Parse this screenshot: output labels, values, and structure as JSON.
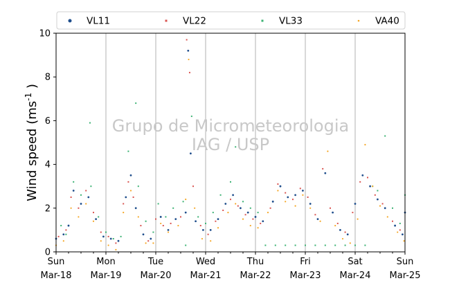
{
  "chart_data": {
    "type": "scatter",
    "ylabel": "Wind speed (ms",
    "ylabel_sup": "-1",
    "ylabel_close": " )",
    "xlabel": "",
    "ylim": [
      0,
      10
    ],
    "yticks": [
      "0",
      "2",
      "4",
      "6",
      "8",
      "10"
    ],
    "grid": "vertical lines at day boundaries",
    "legend_position": "top",
    "watermark": [
      "Grupo de Micrometeorologia",
      "IAG / USP"
    ],
    "x_ticks": [
      {
        "day": "Sun",
        "date": "Mar-18"
      },
      {
        "day": "Mon",
        "date": "Mar-19"
      },
      {
        "day": "Tue",
        "date": "Mar-20"
      },
      {
        "day": "Wed",
        "date": "Mar-21"
      },
      {
        "day": "Thu",
        "date": "Mar-22"
      },
      {
        "day": "Fri",
        "date": "Mar-23"
      },
      {
        "day": "Sat",
        "date": "Mar-24"
      },
      {
        "day": "Sun",
        "date": "Mar-25"
      }
    ],
    "x_days": 7,
    "series": [
      {
        "name": "VL11",
        "color": "#1f4e8c",
        "size": 2.2,
        "marker": "hex",
        "points": [
          [
            0.0,
            0.6
          ],
          [
            0.15,
            0.8
          ],
          [
            0.25,
            1.2
          ],
          [
            0.35,
            2.8
          ],
          [
            0.5,
            2.2
          ],
          [
            0.65,
            2.5
          ],
          [
            0.8,
            1.5
          ],
          [
            0.95,
            0.7
          ],
          [
            1.1,
            0.6
          ],
          [
            1.25,
            0.5
          ],
          [
            1.4,
            2.5
          ],
          [
            1.5,
            3.5
          ],
          [
            1.6,
            2.0
          ],
          [
            1.75,
            0.8
          ],
          [
            1.9,
            0.6
          ],
          [
            2.1,
            1.6
          ],
          [
            2.25,
            1.0
          ],
          [
            2.4,
            1.5
          ],
          [
            2.6,
            1.8
          ],
          [
            2.65,
            9.2
          ],
          [
            2.7,
            4.5
          ],
          [
            2.8,
            1.4
          ],
          [
            2.95,
            1.0
          ],
          [
            3.1,
            1.0
          ],
          [
            3.25,
            1.5
          ],
          [
            3.4,
            2.2
          ],
          [
            3.55,
            2.6
          ],
          [
            3.7,
            2.0
          ],
          [
            3.85,
            1.8
          ],
          [
            4.0,
            1.6
          ],
          [
            4.15,
            1.4
          ],
          [
            4.35,
            2.3
          ],
          [
            4.5,
            3.0
          ],
          [
            4.65,
            2.5
          ],
          [
            4.8,
            2.6
          ],
          [
            4.95,
            2.8
          ],
          [
            5.1,
            2.2
          ],
          [
            5.25,
            1.5
          ],
          [
            5.4,
            3.6
          ],
          [
            5.55,
            1.8
          ],
          [
            5.7,
            1.0
          ],
          [
            5.85,
            0.8
          ],
          [
            6.0,
            2.2
          ],
          [
            6.15,
            3.5
          ],
          [
            6.3,
            3.0
          ],
          [
            6.45,
            2.4
          ],
          [
            6.6,
            2.0
          ],
          [
            6.8,
            1.2
          ],
          [
            6.95,
            0.8
          ],
          [
            7.0,
            1.8
          ]
        ]
      },
      {
        "name": "VL22",
        "color": "#d9534f",
        "size": 2.0,
        "marker": "square",
        "points": [
          [
            0.05,
            0.7
          ],
          [
            0.2,
            1.0
          ],
          [
            0.3,
            2.5
          ],
          [
            0.45,
            2.0
          ],
          [
            0.6,
            2.8
          ],
          [
            0.75,
            1.8
          ],
          [
            0.9,
            0.9
          ],
          [
            1.05,
            0.7
          ],
          [
            1.2,
            0.4
          ],
          [
            1.35,
            2.2
          ],
          [
            1.45,
            3.2
          ],
          [
            1.55,
            2.5
          ],
          [
            1.7,
            1.2
          ],
          [
            1.85,
            0.5
          ],
          [
            2.0,
            1.5
          ],
          [
            2.15,
            1.2
          ],
          [
            2.3,
            1.3
          ],
          [
            2.5,
            1.6
          ],
          [
            2.62,
            9.7
          ],
          [
            2.68,
            8.2
          ],
          [
            2.75,
            3.0
          ],
          [
            2.9,
            1.2
          ],
          [
            3.05,
            0.8
          ],
          [
            3.2,
            1.4
          ],
          [
            3.35,
            1.9
          ],
          [
            3.5,
            2.4
          ],
          [
            3.65,
            2.1
          ],
          [
            3.8,
            1.7
          ],
          [
            3.95,
            1.5
          ],
          [
            4.1,
            1.3
          ],
          [
            4.3,
            2.0
          ],
          [
            4.45,
            3.1
          ],
          [
            4.6,
            2.7
          ],
          [
            4.75,
            2.4
          ],
          [
            4.9,
            2.9
          ],
          [
            5.05,
            2.5
          ],
          [
            5.2,
            1.7
          ],
          [
            5.35,
            3.8
          ],
          [
            5.5,
            2.0
          ],
          [
            5.65,
            1.3
          ],
          [
            5.8,
            0.9
          ],
          [
            5.95,
            1.8
          ],
          [
            6.1,
            3.2
          ],
          [
            6.25,
            3.4
          ],
          [
            6.4,
            2.6
          ],
          [
            6.55,
            2.2
          ],
          [
            6.75,
            1.4
          ],
          [
            6.9,
            1.0
          ]
        ]
      },
      {
        "name": "VL33",
        "color": "#3bb273",
        "size": 2.0,
        "marker": "square",
        "points": [
          [
            0.1,
            1.2
          ],
          [
            0.2,
            0.8
          ],
          [
            0.35,
            3.2
          ],
          [
            0.5,
            2.6
          ],
          [
            0.68,
            5.9
          ],
          [
            0.7,
            3.0
          ],
          [
            0.85,
            1.6
          ],
          [
            1.0,
            0.9
          ],
          [
            1.15,
            0.6
          ],
          [
            1.3,
            0.7
          ],
          [
            1.45,
            4.6
          ],
          [
            1.6,
            6.8
          ],
          [
            1.65,
            3.0
          ],
          [
            1.8,
            1.4
          ],
          [
            1.95,
            0.9
          ],
          [
            2.05,
            2.2
          ],
          [
            2.2,
            1.6
          ],
          [
            2.35,
            2.0
          ],
          [
            2.55,
            2.3
          ],
          [
            2.6,
            0.3
          ],
          [
            2.72,
            6.2
          ],
          [
            2.85,
            1.6
          ],
          [
            3.0,
            1.3
          ],
          [
            3.15,
            1.8
          ],
          [
            3.3,
            2.6
          ],
          [
            3.5,
            3.2
          ],
          [
            3.6,
            4.8
          ],
          [
            3.75,
            2.3
          ],
          [
            3.9,
            2.0
          ],
          [
            4.05,
            1.8
          ],
          [
            4.2,
            0.3
          ],
          [
            4.4,
            0.3
          ],
          [
            4.6,
            0.3
          ],
          [
            4.8,
            0.3
          ],
          [
            5.0,
            0.3
          ],
          [
            5.2,
            0.3
          ],
          [
            5.4,
            0.3
          ],
          [
            5.6,
            0.3
          ],
          [
            5.8,
            0.3
          ],
          [
            6.0,
            0.3
          ],
          [
            6.2,
            0.3
          ],
          [
            6.35,
            3.0
          ],
          [
            6.45,
            2.8
          ],
          [
            6.6,
            5.3
          ],
          [
            6.75,
            2.0
          ],
          [
            6.9,
            1.3
          ],
          [
            7.0,
            2.6
          ]
        ]
      },
      {
        "name": "VA40",
        "color": "#f5a623",
        "size": 1.6,
        "marker": "dot",
        "points": [
          [
            0.0,
            0.3
          ],
          [
            0.15,
            0.5
          ],
          [
            0.3,
            2.0
          ],
          [
            0.45,
            1.6
          ],
          [
            0.6,
            2.2
          ],
          [
            0.75,
            1.4
          ],
          [
            0.9,
            0.5
          ],
          [
            1.05,
            0.3
          ],
          [
            1.2,
            0.1
          ],
          [
            1.35,
            1.8
          ],
          [
            1.5,
            2.8
          ],
          [
            1.65,
            1.6
          ],
          [
            1.8,
            0.4
          ],
          [
            1.95,
            0.4
          ],
          [
            2.1,
            1.3
          ],
          [
            2.25,
            0.9
          ],
          [
            2.45,
            1.2
          ],
          [
            2.6,
            2.4
          ],
          [
            2.66,
            8.8
          ],
          [
            2.78,
            2.0
          ],
          [
            2.93,
            0.6
          ],
          [
            3.1,
            0.5
          ],
          [
            3.25,
            1.1
          ],
          [
            3.45,
            1.8
          ],
          [
            3.6,
            2.2
          ],
          [
            3.75,
            1.5
          ],
          [
            3.9,
            1.2
          ],
          [
            4.05,
            1.1
          ],
          [
            4.25,
            1.8
          ],
          [
            4.45,
            2.8
          ],
          [
            4.6,
            2.3
          ],
          [
            4.8,
            2.1
          ],
          [
            4.95,
            2.6
          ],
          [
            5.1,
            2.0
          ],
          [
            5.3,
            1.4
          ],
          [
            5.45,
            4.6
          ],
          [
            5.6,
            1.2
          ],
          [
            5.75,
            0.6
          ],
          [
            5.9,
            0.4
          ],
          [
            6.05,
            1.5
          ],
          [
            6.2,
            4.9
          ],
          [
            6.35,
            3.0
          ],
          [
            6.5,
            2.1
          ],
          [
            6.65,
            1.6
          ],
          [
            6.85,
            0.9
          ],
          [
            6.98,
            0.5
          ]
        ]
      }
    ]
  }
}
